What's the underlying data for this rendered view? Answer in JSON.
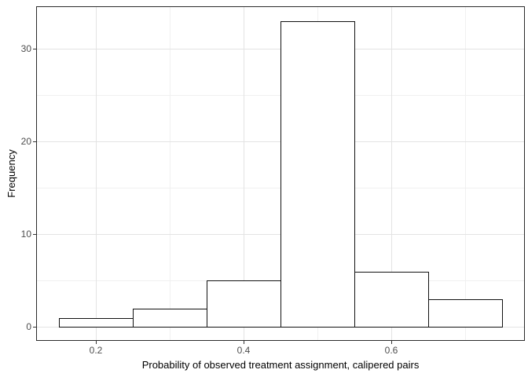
{
  "figure": {
    "background": "#ffffff"
  },
  "chart_data": {
    "type": "bar",
    "subtype": "histogram",
    "title": "",
    "xlabel": "Probability of observed treatment assignment, calipered pairs",
    "ylabel": "Frequency",
    "bins": [
      {
        "x_start": 0.15,
        "x_end": 0.25,
        "count": 1
      },
      {
        "x_start": 0.25,
        "x_end": 0.35,
        "count": 2
      },
      {
        "x_start": 0.35,
        "x_end": 0.45,
        "count": 5
      },
      {
        "x_start": 0.45,
        "x_end": 0.55,
        "count": 33
      },
      {
        "x_start": 0.55,
        "x_end": 0.65,
        "count": 6
      },
      {
        "x_start": 0.65,
        "x_end": 0.75,
        "count": 3
      }
    ],
    "x_ticks": [
      {
        "value": 0.2,
        "label": "0.2"
      },
      {
        "value": 0.4,
        "label": "0.4"
      },
      {
        "value": 0.6,
        "label": "0.6"
      }
    ],
    "y_ticks": [
      {
        "value": 0,
        "label": "0"
      },
      {
        "value": 10,
        "label": "10"
      },
      {
        "value": 20,
        "label": "20"
      },
      {
        "value": 30,
        "label": "30"
      }
    ],
    "x_minor_ticks": [
      0.3,
      0.5,
      0.7
    ],
    "y_minor_ticks": [
      5,
      15,
      25
    ],
    "xlim": [
      0.12,
      0.78
    ],
    "ylim": [
      -1.4,
      34.5
    ],
    "grid": "major+minor",
    "legend": "none",
    "style": {
      "panel_border_color": "#2b2b2b",
      "grid_major_color": "#e3e3e3",
      "grid_minor_color": "#f0f0f0",
      "bar_fill": "#ffffff",
      "bar_stroke": "#111111",
      "tick_color": "#333333",
      "tick_label_color": "#4d4d4d",
      "axis_title_color": "#000000"
    }
  }
}
